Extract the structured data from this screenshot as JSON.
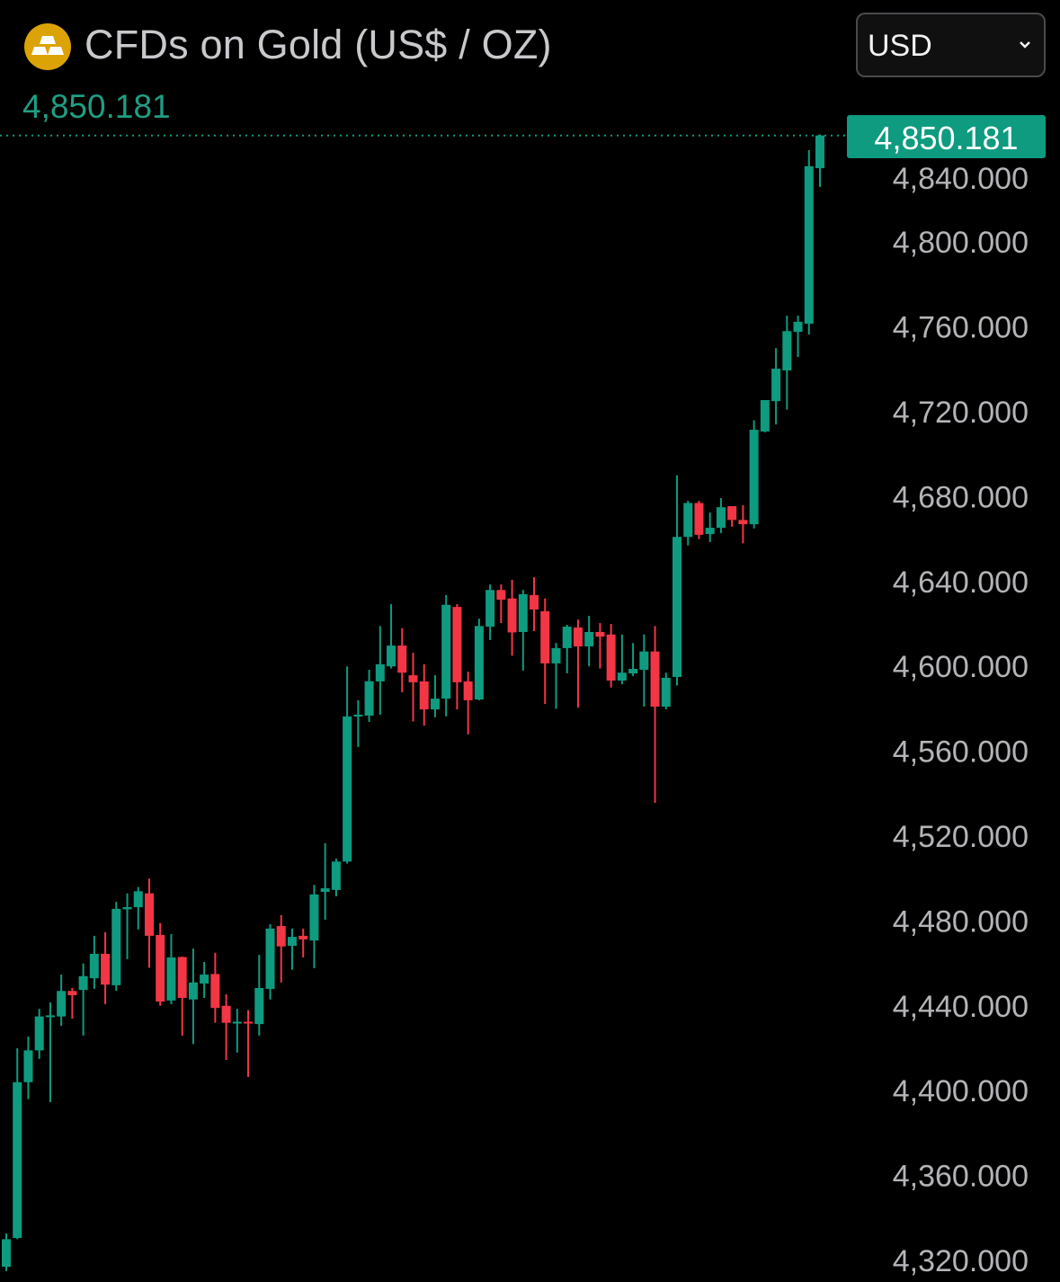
{
  "header": {
    "icon": "gold-bars-icon",
    "title": "CFDs on Gold (US$ / OZ)",
    "last_price": "4,850.181",
    "currency_select": {
      "value": "USD",
      "icon": "chevron-down-icon"
    }
  },
  "colors": {
    "up": "#0e9b80",
    "down": "#f23645",
    "icon": "#dca306",
    "background": "#000000"
  },
  "chart_data": {
    "type": "candlestick",
    "title": "",
    "xlabel": "",
    "ylabel": "",
    "ylim": [
      4314,
      4860
    ],
    "yticks": [
      "4,320.000",
      "4,360.000",
      "4,400.000",
      "4,440.000",
      "4,480.000",
      "4,520.000",
      "4,560.000",
      "4,600.000",
      "4,640.000",
      "4,680.000",
      "4,720.000",
      "4,760.000",
      "4,800.000",
      "4,840.000"
    ],
    "ytick_values": [
      4320,
      4360,
      4400,
      4440,
      4480,
      4520,
      4560,
      4600,
      4640,
      4680,
      4720,
      4760,
      4800,
      4840
    ],
    "last_price_line": 4850.181,
    "last_price_label": "4,850.181",
    "grid": false,
    "ohlc": [
      [
        4317,
        4332.7,
        4315,
        4330
      ],
      [
        4330.6,
        4420,
        4330,
        4404
      ],
      [
        4404,
        4425.5,
        4396,
        4419
      ],
      [
        4419,
        4438.6,
        4415,
        4435
      ],
      [
        4435,
        4441.6,
        4394.6,
        4435.5
      ],
      [
        4435,
        4454.7,
        4430.6,
        4447
      ],
      [
        4447,
        4448.4,
        4434,
        4445
      ],
      [
        4447.5,
        4460,
        4426,
        4454
      ],
      [
        4453,
        4473,
        4448,
        4464.5
      ],
      [
        4464.5,
        4474.7,
        4440.8,
        4450
      ],
      [
        4449.7,
        4489,
        4447,
        4485.7
      ],
      [
        4485.5,
        4493,
        4462,
        4486.5
      ],
      [
        4486.5,
        4496,
        4476,
        4494
      ],
      [
        4493,
        4500,
        4458,
        4473
      ],
      [
        4473.4,
        4479,
        4440,
        4442
      ],
      [
        4442.5,
        4473.8,
        4440.8,
        4462.8
      ],
      [
        4463,
        4463.2,
        4426,
        4443.7
      ],
      [
        4443,
        4467,
        4422,
        4451
      ],
      [
        4450.5,
        4460.7,
        4443.7,
        4454.7
      ],
      [
        4455,
        4465,
        4432,
        4439
      ],
      [
        4440,
        4445.4,
        4414.5,
        4432
      ],
      [
        4432,
        4438.6,
        4418,
        4432.5
      ],
      [
        4432.5,
        4438,
        4406.5,
        4431.8
      ],
      [
        4431.4,
        4464,
        4426,
        4448.4
      ],
      [
        4448,
        4478.5,
        4443,
        4476.4
      ],
      [
        4477.6,
        4482.7,
        4451,
        4468
      ],
      [
        4468.3,
        4476.4,
        4457,
        4472.5
      ],
      [
        4473,
        4476.4,
        4462.8,
        4471.3
      ],
      [
        4470.8,
        4497,
        4457.7,
        4492.5
      ],
      [
        4493.7,
        4516.6,
        4480.6,
        4495.4
      ],
      [
        4494.6,
        4509.4,
        4491.6,
        4508
      ],
      [
        4508,
        4600,
        4507,
        4576.4
      ],
      [
        4576.4,
        4584,
        4562,
        4577.2
      ],
      [
        4576.8,
        4598.4,
        4573.8,
        4593
      ],
      [
        4592.9,
        4619,
        4577.2,
        4601
      ],
      [
        4600,
        4629.3,
        4599,
        4609.8
      ],
      [
        4609.8,
        4618,
        4587.8,
        4597
      ],
      [
        4595.8,
        4606.4,
        4574,
        4592.5
      ],
      [
        4592.9,
        4601,
        4572,
        4579.7
      ],
      [
        4579.7,
        4595.8,
        4576,
        4584.8
      ],
      [
        4584.8,
        4633.6,
        4576.4,
        4629
      ],
      [
        4628,
        4629.3,
        4579.7,
        4592.5
      ],
      [
        4592.9,
        4597.5,
        4568,
        4584
      ],
      [
        4584.4,
        4622.5,
        4584,
        4619
      ],
      [
        4618.7,
        4638.6,
        4612.4,
        4636
      ],
      [
        4636,
        4638.6,
        4620.4,
        4631.4
      ],
      [
        4632,
        4640.8,
        4605,
        4616
      ],
      [
        4616.2,
        4636,
        4598,
        4634
      ],
      [
        4633.6,
        4642,
        4616.6,
        4626.8
      ],
      [
        4626,
        4632,
        4582.3,
        4601.4
      ],
      [
        4601.4,
        4611,
        4580,
        4608.6
      ],
      [
        4608.6,
        4619.6,
        4596.7,
        4618.7
      ],
      [
        4618.3,
        4622,
        4580.6,
        4609.4
      ],
      [
        4609.4,
        4623.8,
        4600,
        4616.2
      ],
      [
        4616.2,
        4620.4,
        4599,
        4614
      ],
      [
        4615,
        4620,
        4590,
        4593.3
      ],
      [
        4593.3,
        4615,
        4591.6,
        4597
      ],
      [
        4596.7,
        4611,
        4595.4,
        4598.8
      ],
      [
        4598.4,
        4615,
        4581,
        4607
      ],
      [
        4607,
        4619,
        4535.7,
        4581
      ],
      [
        4581,
        4597,
        4579.7,
        4594.6
      ],
      [
        4595,
        4690,
        4591,
        4661
      ],
      [
        4661,
        4678,
        4657,
        4677
      ],
      [
        4677,
        4678,
        4660,
        4662
      ],
      [
        4662.4,
        4672.5,
        4658.6,
        4665.3
      ],
      [
        4665.3,
        4679.3,
        4662.8,
        4675
      ],
      [
        4675.5,
        4675.5,
        4665.8,
        4669
      ],
      [
        4669,
        4676,
        4658,
        4667
      ],
      [
        4667,
        4716,
        4665,
        4711.5
      ],
      [
        4710.7,
        4725.5,
        4710.3,
        4725.5
      ],
      [
        4725,
        4750,
        4714,
        4740.3
      ],
      [
        4739.5,
        4765.3,
        4721,
        4758
      ],
      [
        4757.7,
        4765.3,
        4745.8,
        4762.4
      ],
      [
        4761.5,
        4843.3,
        4756.4,
        4835.7
      ],
      [
        4834.8,
        4850.7,
        4826,
        4850.2
      ]
    ]
  }
}
